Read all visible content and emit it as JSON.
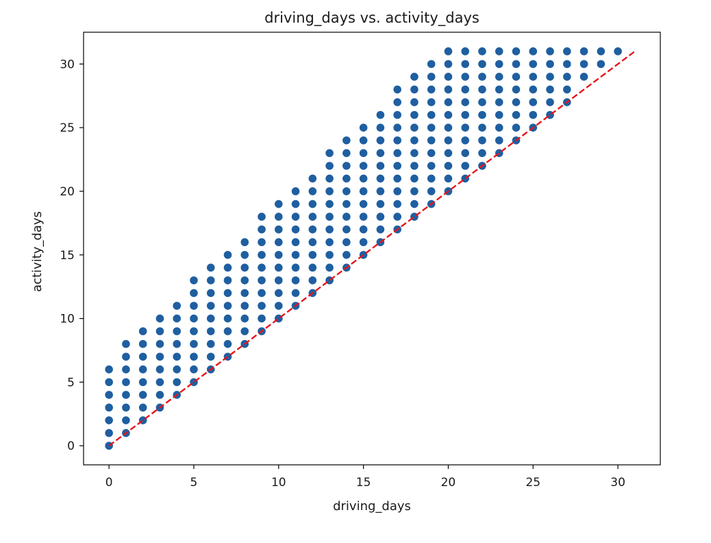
{
  "chart_data": {
    "type": "scatter",
    "title": "driving_days vs. activity_days",
    "xlabel": "driving_days",
    "ylabel": "activity_days",
    "xlim": [
      -1.5,
      32.5
    ],
    "ylim": [
      -1.5,
      32.5
    ],
    "xticks": [
      0,
      5,
      10,
      15,
      20,
      25,
      30
    ],
    "yticks": [
      0,
      5,
      10,
      15,
      20,
      25,
      30
    ],
    "grid": false,
    "colors": {
      "points": "#1f5fa0",
      "reference_line": "#e8141c",
      "axes": "#000000"
    },
    "series": [
      {
        "columns": [
          {
            "x": 0,
            "y_min": 0,
            "y_max": 6
          },
          {
            "x": 1,
            "y_min": 1,
            "y_max": 8
          },
          {
            "x": 2,
            "y_min": 2,
            "y_max": 9
          },
          {
            "x": 3,
            "y_min": 3,
            "y_max": 10
          },
          {
            "x": 4,
            "y_min": 4,
            "y_max": 11
          },
          {
            "x": 5,
            "y_min": 5,
            "y_max": 13
          },
          {
            "x": 6,
            "y_min": 6,
            "y_max": 14
          },
          {
            "x": 7,
            "y_min": 7,
            "y_max": 15
          },
          {
            "x": 8,
            "y_min": 8,
            "y_max": 16
          },
          {
            "x": 9,
            "y_min": 9,
            "y_max": 18
          },
          {
            "x": 10,
            "y_min": 10,
            "y_max": 19
          },
          {
            "x": 11,
            "y_min": 11,
            "y_max": 20
          },
          {
            "x": 12,
            "y_min": 12,
            "y_max": 21
          },
          {
            "x": 13,
            "y_min": 13,
            "y_max": 23
          },
          {
            "x": 14,
            "y_min": 14,
            "y_max": 24
          },
          {
            "x": 15,
            "y_min": 15,
            "y_max": 25
          },
          {
            "x": 16,
            "y_min": 16,
            "y_max": 26
          },
          {
            "x": 17,
            "y_min": 17,
            "y_max": 28
          },
          {
            "x": 18,
            "y_min": 18,
            "y_max": 29
          },
          {
            "x": 19,
            "y_min": 19,
            "y_max": 30
          },
          {
            "x": 20,
            "y_min": 20,
            "y_max": 31
          },
          {
            "x": 21,
            "y_min": 21,
            "y_max": 31
          },
          {
            "x": 22,
            "y_min": 22,
            "y_max": 31
          },
          {
            "x": 23,
            "y_min": 23,
            "y_max": 31
          },
          {
            "x": 24,
            "y_min": 24,
            "y_max": 31
          },
          {
            "x": 25,
            "y_min": 25,
            "y_max": 31
          },
          {
            "x": 26,
            "y_min": 26,
            "y_max": 31
          },
          {
            "x": 27,
            "y_min": 27,
            "y_max": 31
          },
          {
            "x": 28,
            "y_min": 29,
            "y_max": 31
          },
          {
            "x": 29,
            "y_min": 30,
            "y_max": 31
          },
          {
            "x": 30,
            "y_min": 31,
            "y_max": 31
          }
        ]
      }
    ],
    "reference_line": {
      "style": "dashed",
      "points": [
        [
          0,
          0
        ],
        [
          31,
          31
        ]
      ]
    }
  }
}
